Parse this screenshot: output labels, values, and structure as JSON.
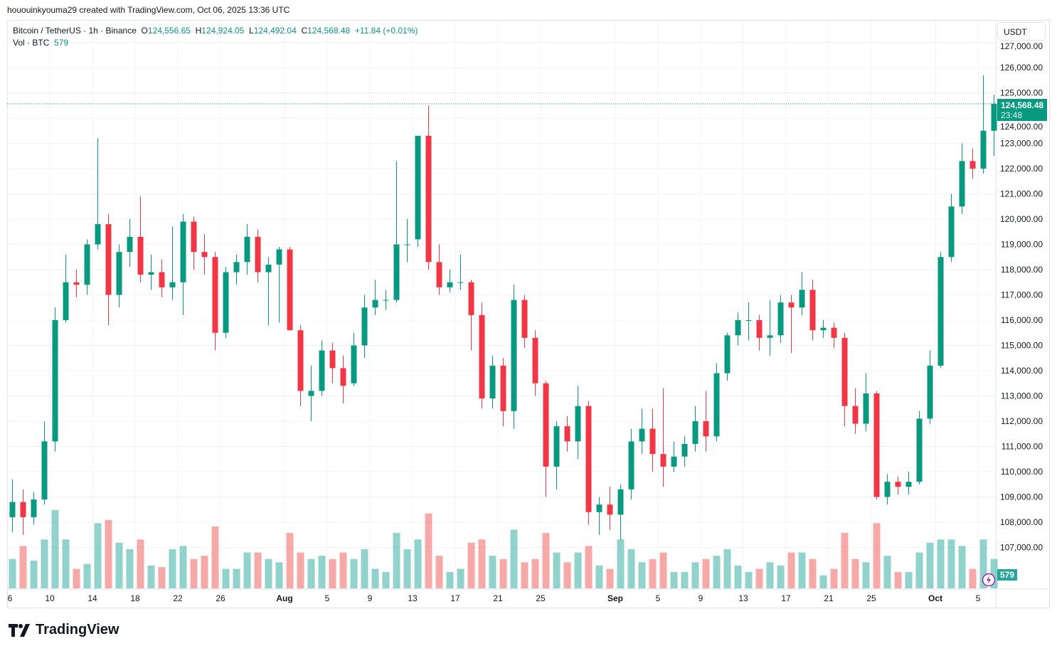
{
  "credit": "hououinkyouma29 created with TradingView.com, Oct 06, 2025 13:36 UTC",
  "legend": {
    "symbol": "Bitcoin / TetherUS · 1h · Binance",
    "o_label": "O",
    "o": "124,556.65",
    "h_label": "H",
    "h": "124,924.05",
    "l_label": "L",
    "l": "124,492.04",
    "c_label": "C",
    "c": "124,568.48",
    "change": "+11.84 (+0.01%)",
    "vol_label": "Vol · BTC",
    "vol": "579"
  },
  "currency": "USDT",
  "last_price": "124,568.48",
  "countdown": "23:48",
  "vol_last": "579",
  "brand": "TradingView",
  "colors": {
    "up": "#089981",
    "down": "#f23645",
    "vol_up": "#26a69a",
    "vol_down": "#ef5350"
  },
  "chart_data": {
    "type": "candlestick",
    "interval": "1h (shown aggregated approx. per day)",
    "ylim": [
      106500,
      127300
    ],
    "y_ticks": [
      "107,000.00",
      "108,000.00",
      "109,000.00",
      "110,000.00",
      "111,000.00",
      "112,000.00",
      "113,000.00",
      "114,000.00",
      "115,000.00",
      "116,000.00",
      "117,000.00",
      "118,000.00",
      "119,000.00",
      "120,000.00",
      "121,000.00",
      "122,000.00",
      "123,000.00",
      "124,000.00",
      "125,000.00",
      "126,000.00",
      "127,000.00"
    ],
    "y_tick_values": [
      107000,
      108000,
      109000,
      110000,
      111000,
      112000,
      113000,
      114000,
      115000,
      116000,
      117000,
      118000,
      119000,
      120000,
      121000,
      122000,
      123000,
      124000,
      125000,
      126000,
      127000
    ],
    "x_ticks": [
      {
        "label": "6",
        "day": 0
      },
      {
        "label": "10",
        "day": 4
      },
      {
        "label": "14",
        "day": 8
      },
      {
        "label": "18",
        "day": 12
      },
      {
        "label": "22",
        "day": 16
      },
      {
        "label": "26",
        "day": 20
      },
      {
        "label": "Aug",
        "day": 26
      },
      {
        "label": "5",
        "day": 30
      },
      {
        "label": "9",
        "day": 34
      },
      {
        "label": "13",
        "day": 38
      },
      {
        "label": "17",
        "day": 42
      },
      {
        "label": "21",
        "day": 46
      },
      {
        "label": "25",
        "day": 50
      },
      {
        "label": "Sep",
        "day": 57
      },
      {
        "label": "5",
        "day": 61
      },
      {
        "label": "9",
        "day": 65
      },
      {
        "label": "13",
        "day": 69
      },
      {
        "label": "17",
        "day": 73
      },
      {
        "label": "21",
        "day": 77
      },
      {
        "label": "25",
        "day": 81
      },
      {
        "label": "Oct",
        "day": 87
      },
      {
        "label": "5",
        "day": 91
      }
    ],
    "start_date": "2025-07-06",
    "ohlc": [
      [
        108200,
        109700,
        107600,
        108800
      ],
      [
        108800,
        109300,
        107500,
        108200
      ],
      [
        108200,
        109200,
        107900,
        108900
      ],
      [
        108900,
        112000,
        108700,
        111200
      ],
      [
        111200,
        116500,
        110800,
        116000
      ],
      [
        116000,
        118600,
        115900,
        117500
      ],
      [
        117500,
        118000,
        116900,
        117400
      ],
      [
        117400,
        119200,
        117000,
        119000
      ],
      [
        119000,
        123200,
        118800,
        119800
      ],
      [
        119800,
        120200,
        115800,
        117000
      ],
      [
        117000,
        119000,
        116500,
        118700
      ],
      [
        118700,
        120000,
        118100,
        119300
      ],
      [
        119300,
        120900,
        117500,
        117800
      ],
      [
        117800,
        118600,
        117200,
        117900
      ],
      [
        117900,
        118400,
        116900,
        117300
      ],
      [
        117300,
        119700,
        116800,
        117500
      ],
      [
        117500,
        120200,
        116200,
        119900
      ],
      [
        119900,
        120100,
        118000,
        118700
      ],
      [
        118700,
        119400,
        117800,
        118500
      ],
      [
        118500,
        118700,
        114800,
        115500
      ],
      [
        115500,
        118100,
        115300,
        117900
      ],
      [
        117900,
        118600,
        117400,
        118300
      ],
      [
        118300,
        119800,
        117800,
        119300
      ],
      [
        119300,
        119600,
        117500,
        117900
      ],
      [
        117900,
        118500,
        115800,
        118200
      ],
      [
        118200,
        118900,
        115900,
        118800
      ],
      [
        118800,
        118900,
        115600,
        115600
      ],
      [
        115600,
        115800,
        112600,
        113200
      ],
      [
        113000,
        114200,
        112000,
        113200
      ],
      [
        113200,
        115200,
        113000,
        114800
      ],
      [
        114800,
        115100,
        113500,
        114100
      ],
      [
        114100,
        114600,
        112700,
        113400
      ],
      [
        113500,
        115500,
        113400,
        115000
      ],
      [
        115000,
        117000,
        114500,
        116500
      ],
      [
        116500,
        117600,
        116200,
        116800
      ],
      [
        116800,
        117200,
        116400,
        116800
      ],
      [
        116800,
        122300,
        116700,
        119000
      ],
      [
        119000,
        120000,
        118300,
        119000
      ],
      [
        119200,
        123300,
        118900,
        123300
      ],
      [
        123300,
        124500,
        118000,
        118300
      ],
      [
        118300,
        119000,
        117000,
        117300
      ],
      [
        117300,
        118000,
        117100,
        117500
      ],
      [
        117500,
        118600,
        117200,
        117500
      ],
      [
        117500,
        117600,
        114800,
        116200
      ],
      [
        116200,
        116700,
        112500,
        112900
      ],
      [
        112900,
        114600,
        112500,
        114200
      ],
      [
        114200,
        114500,
        111800,
        112400
      ],
      [
        112400,
        117400,
        111700,
        116800
      ],
      [
        116800,
        117000,
        114900,
        115300
      ],
      [
        115300,
        115600,
        113000,
        113500
      ],
      [
        113500,
        113600,
        109000,
        110200
      ],
      [
        110200,
        112000,
        109300,
        111800
      ],
      [
        111800,
        112200,
        110800,
        111200
      ],
      [
        111200,
        113400,
        110500,
        112600
      ],
      [
        112600,
        112800,
        107900,
        108400
      ],
      [
        108400,
        109000,
        107500,
        108700
      ],
      [
        108700,
        109400,
        107700,
        108300
      ],
      [
        108300,
        109500,
        107300,
        109300
      ],
      [
        109300,
        111700,
        108900,
        111200
      ],
      [
        111200,
        112500,
        110700,
        111700
      ],
      [
        111700,
        112500,
        110000,
        110700
      ],
      [
        110700,
        113300,
        109400,
        110200
      ],
      [
        110200,
        111200,
        110000,
        110600
      ],
      [
        110600,
        111400,
        110200,
        111100
      ],
      [
        111100,
        112600,
        110800,
        112000
      ],
      [
        112000,
        113200,
        110800,
        111400
      ],
      [
        111400,
        114300,
        111200,
        113900
      ],
      [
        113900,
        115500,
        113600,
        115400
      ],
      [
        115400,
        116300,
        115000,
        116000
      ],
      [
        116000,
        116700,
        115200,
        116000
      ],
      [
        116000,
        116200,
        114800,
        115300
      ],
      [
        115300,
        116800,
        114600,
        115400
      ],
      [
        115400,
        117000,
        115100,
        116700
      ],
      [
        116700,
        117000,
        114700,
        116500
      ],
      [
        116500,
        117900,
        116200,
        117200
      ],
      [
        117200,
        117600,
        115200,
        115600
      ],
      [
        115600,
        116000,
        115300,
        115700
      ],
      [
        115700,
        115900,
        114900,
        115300
      ],
      [
        115300,
        115500,
        111800,
        112600
      ],
      [
        112600,
        113300,
        111500,
        111900
      ],
      [
        111900,
        113900,
        111600,
        113100
      ],
      [
        113100,
        113200,
        108900,
        109000
      ],
      [
        109000,
        109900,
        108700,
        109600
      ],
      [
        109600,
        109800,
        109100,
        109400
      ],
      [
        109400,
        110000,
        109100,
        109600
      ],
      [
        109600,
        112400,
        109500,
        112100
      ],
      [
        112100,
        114800,
        111900,
        114200
      ],
      [
        114200,
        118700,
        114100,
        118500
      ],
      [
        118500,
        121000,
        118300,
        120500
      ],
      [
        120500,
        123000,
        120200,
        122300
      ],
      [
        122300,
        122800,
        121600,
        122000
      ],
      [
        122000,
        125700,
        121800,
        123500
      ],
      [
        123500,
        124924,
        122500,
        124568.48
      ]
    ],
    "volume": [
      18,
      26,
      17,
      30,
      48,
      30,
      12,
      15,
      40,
      42,
      28,
      24,
      30,
      14,
      13,
      24,
      26,
      18,
      20,
      38,
      12,
      12,
      22,
      22,
      18,
      16,
      34,
      22,
      18,
      20,
      18,
      22,
      18,
      24,
      12,
      10,
      34,
      24,
      30,
      46,
      20,
      10,
      12,
      28,
      30,
      20,
      18,
      36,
      16,
      18,
      34,
      22,
      16,
      22,
      26,
      14,
      12,
      30,
      24,
      16,
      18,
      22,
      10,
      10,
      16,
      18,
      20,
      24,
      14,
      10,
      12,
      16,
      14,
      22,
      22,
      18,
      8,
      12,
      34,
      18,
      16,
      40,
      20,
      10,
      10,
      22,
      28,
      30,
      30,
      26,
      12,
      30,
      18
    ]
  }
}
